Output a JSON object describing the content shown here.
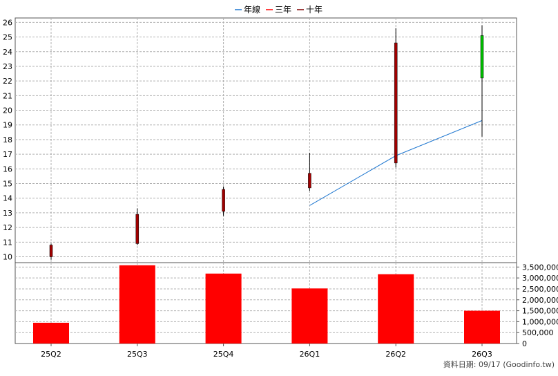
{
  "chart_data": {
    "type": "candlestick",
    "categories": [
      "25Q2",
      "25Q3",
      "25Q4",
      "26Q1",
      "26Q2",
      "26Q3"
    ],
    "legend": [
      {
        "name": "年線",
        "color": "#1f77d0"
      },
      {
        "name": "三年",
        "color": "#ff0000"
      },
      {
        "name": "十年",
        "color": "#800000"
      }
    ],
    "price_axis": {
      "ylim": [
        9.6,
        26.3
      ],
      "ticks": [
        10,
        11,
        12,
        13,
        14,
        15,
        16,
        17,
        18,
        19,
        20,
        21,
        22,
        23,
        24,
        25,
        26
      ]
    },
    "candles": [
      {
        "open": 10.0,
        "close": 10.8,
        "high": 10.9,
        "low": 9.8
      },
      {
        "open": 10.9,
        "close": 12.9,
        "high": 13.3,
        "low": 10.8
      },
      {
        "open": 13.1,
        "close": 14.6,
        "high": 14.8,
        "low": 12.8
      },
      {
        "open": 14.7,
        "close": 15.7,
        "high": 17.1,
        "low": 14.5
      },
      {
        "open": 16.4,
        "close": 24.6,
        "high": 25.6,
        "low": 16.1
      },
      {
        "open": 25.1,
        "close": 22.2,
        "high": 25.8,
        "low": 18.2
      }
    ],
    "annual_line": [
      null,
      null,
      null,
      13.5,
      16.9,
      19.3
    ],
    "volume_axis": {
      "ylim": [
        0,
        3700000
      ],
      "ticks": [
        "0",
        "500,000",
        "1,000,000",
        "1,500,000",
        "2,000,000",
        "2,500,000",
        "3,000,000",
        "3,500,000"
      ],
      "tick_values": [
        0,
        500000,
        1000000,
        1500000,
        2000000,
        2500000,
        3000000,
        3500000
      ]
    },
    "volume": [
      950000,
      3580000,
      3200000,
      2520000,
      3170000,
      1500000
    ],
    "colors": {
      "up": "#a00000",
      "down": "#00c000",
      "volume": "#ff0000",
      "grid": "#b0b0b0"
    }
  },
  "footer": {
    "source": "資料日期: 09/17  (Goodinfo.tw)"
  }
}
